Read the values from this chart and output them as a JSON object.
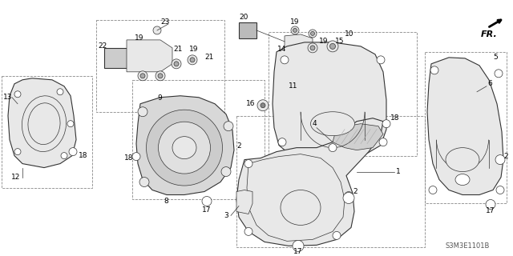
{
  "background_color": "#ffffff",
  "diagram_code": "S3M3E1101B",
  "fig_width": 6.4,
  "fig_height": 3.2,
  "dpi": 100,
  "line_color": "#333333",
  "light_fill": "#e8e8e8",
  "white_fill": "#ffffff",
  "dashed_color": "#888888",
  "label_fs": 6.5,
  "lw_part": 0.8,
  "lw_thin": 0.5,
  "lw_dash": 0.6
}
